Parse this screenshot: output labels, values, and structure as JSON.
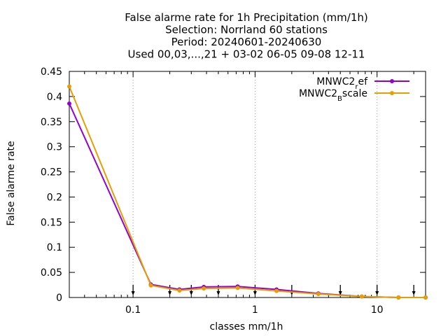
{
  "chart_data": {
    "type": "line",
    "title_lines": [
      "False alarme rate  for 1h Precipitation (mm/1h)",
      "Selection: Norrland     60 stations",
      "Period: 20240601-20240630",
      "Used 00,03,...,21 + 03-02 06-05 09-08 12-11"
    ],
    "xlabel": "classes mm/1h",
    "ylabel": "False alarme rate",
    "x_scale": "log",
    "xlim": [
      0.03,
      25
    ],
    "ylim": [
      0,
      0.45
    ],
    "x_ticks": [
      {
        "value": 0.1,
        "label": "0.1"
      },
      {
        "value": 1,
        "label": "1"
      },
      {
        "value": 10,
        "label": "10"
      }
    ],
    "y_ticks": [
      {
        "value": 0,
        "label": "0"
      },
      {
        "value": 0.05,
        "label": "0.05"
      },
      {
        "value": 0.1,
        "label": "0.1"
      },
      {
        "value": 0.15,
        "label": "0.15"
      },
      {
        "value": 0.2,
        "label": "0.2"
      },
      {
        "value": 0.25,
        "label": "0.25"
      },
      {
        "value": 0.3,
        "label": "0.3"
      },
      {
        "value": 0.35,
        "label": "0.35"
      },
      {
        "value": 0.4,
        "label": "0.4"
      },
      {
        "value": 0.45,
        "label": "0.45"
      }
    ],
    "grid_x": true,
    "grid_style": "dotted",
    "threshold_arrows_x": [
      0.1,
      0.2,
      0.3,
      0.5,
      1,
      2,
      5,
      10,
      20
    ],
    "legend_position": "top-right",
    "series": [
      {
        "name_main": "MNWC2",
        "name_sub": "r",
        "name_rest": "ef",
        "color": "#9400d3",
        "x": [
          0.03,
          0.14,
          0.24,
          0.38,
          0.72,
          1.5,
          3.3,
          7.5,
          15,
          25
        ],
        "y": [
          0.386,
          0.026,
          0.016,
          0.021,
          0.022,
          0.016,
          0.008,
          0.002,
          0.0,
          0.0
        ]
      },
      {
        "name_main": "MNWC2",
        "name_sub": "B",
        "name_rest": "scale",
        "color": "#e69f00",
        "x": [
          0.03,
          0.14,
          0.24,
          0.38,
          0.72,
          1.5,
          3.3,
          7.5,
          15,
          25
        ],
        "y": [
          0.42,
          0.024,
          0.014,
          0.018,
          0.019,
          0.013,
          0.007,
          0.002,
          0.0,
          0.0
        ]
      }
    ]
  }
}
